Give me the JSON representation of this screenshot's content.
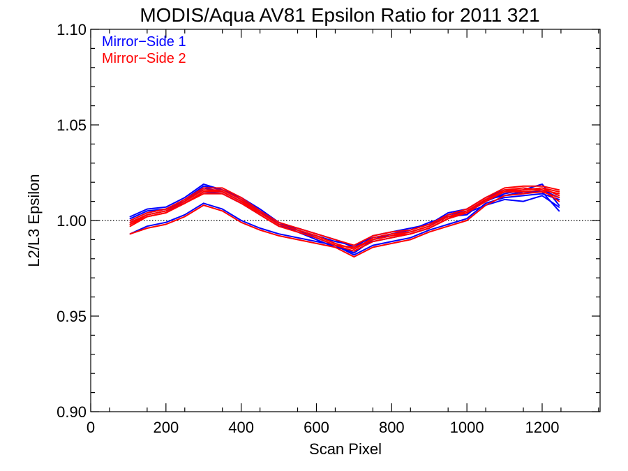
{
  "chart_data": {
    "type": "line",
    "title": "MODIS/Aqua AV81 Epsilon Ratio for 2011 321",
    "xlabel": "Scan Pixel",
    "ylabel": "L2/L3 Epsilon",
    "xlim": [
      0,
      1354
    ],
    "ylim": [
      0.9,
      1.1
    ],
    "x_ticks": [
      0,
      200,
      400,
      600,
      800,
      1000,
      1200
    ],
    "x_tick_labels": [
      "0",
      "200",
      "400",
      "600",
      "800",
      "1000",
      "1200"
    ],
    "y_ticks": [
      0.9,
      0.95,
      1.0,
      1.05,
      1.1
    ],
    "y_tick_labels": [
      "0.90",
      "0.95",
      "1.00",
      "1.05",
      "1.10"
    ],
    "reference_line": 1.0,
    "legend_position": "top-left",
    "legend": [
      {
        "label": "Mirror−Side 1",
        "color": "#0000ff"
      },
      {
        "label": "Mirror−Side 2",
        "color": "#ff0000"
      }
    ],
    "x": [
      105,
      150,
      200,
      250,
      300,
      350,
      400,
      450,
      500,
      550,
      600,
      650,
      700,
      750,
      800,
      850,
      900,
      950,
      1000,
      1050,
      1100,
      1150,
      1200,
      1245
    ],
    "series": [
      {
        "color": "#0000ff",
        "values": [
          1.002,
          1.006,
          1.007,
          1.012,
          1.019,
          1.016,
          1.012,
          1.006,
          0.999,
          0.995,
          0.991,
          0.987,
          0.983,
          0.99,
          0.993,
          0.994,
          0.997,
          1.003,
          1.005,
          1.01,
          1.014,
          1.016,
          1.019,
          1.008
        ]
      },
      {
        "color": "#0000ff",
        "values": [
          1.0,
          1.004,
          1.006,
          1.01,
          1.017,
          1.015,
          1.01,
          1.004,
          0.998,
          0.996,
          0.993,
          0.99,
          0.986,
          0.992,
          0.994,
          0.996,
          0.998,
          1.004,
          1.006,
          1.012,
          1.016,
          1.014,
          1.016,
          1.012
        ]
      },
      {
        "color": "#0000ff",
        "values": [
          0.999,
          1.003,
          1.005,
          1.009,
          1.015,
          1.014,
          1.009,
          1.003,
          0.997,
          0.995,
          0.992,
          0.989,
          0.987,
          0.991,
          0.993,
          0.995,
          0.999,
          1.002,
          1.003,
          1.011,
          1.013,
          1.015,
          1.015,
          1.005
        ]
      },
      {
        "color": "#0000ff",
        "values": [
          0.993,
          0.997,
          0.999,
          1.003,
          1.009,
          1.006,
          1.0,
          0.996,
          0.993,
          0.991,
          0.989,
          0.987,
          0.982,
          0.987,
          0.989,
          0.991,
          0.995,
          0.998,
          1.001,
          1.009,
          1.012,
          1.013,
          1.014,
          1.011
        ]
      },
      {
        "color": "#0000ff",
        "values": [
          1.001,
          1.005,
          1.006,
          1.011,
          1.018,
          1.016,
          1.011,
          1.005,
          0.998,
          0.994,
          0.99,
          0.986,
          0.984,
          0.989,
          0.991,
          0.993,
          0.996,
          1.001,
          1.004,
          1.008,
          1.011,
          1.01,
          1.013,
          1.007
        ]
      },
      {
        "color": "#ff0000",
        "values": [
          0.999,
          1.003,
          1.005,
          1.01,
          1.016,
          1.016,
          1.011,
          1.004,
          0.998,
          0.995,
          0.992,
          0.988,
          0.985,
          0.991,
          0.993,
          0.994,
          0.997,
          1.002,
          1.004,
          1.01,
          1.016,
          1.017,
          1.016,
          1.014
        ]
      },
      {
        "color": "#ff0000",
        "values": [
          0.998,
          1.002,
          1.004,
          1.009,
          1.015,
          1.015,
          1.01,
          1.003,
          0.997,
          0.994,
          0.991,
          0.987,
          0.986,
          0.99,
          0.992,
          0.993,
          0.996,
          1.001,
          1.005,
          1.011,
          1.015,
          1.016,
          1.017,
          1.013
        ]
      },
      {
        "color": "#ff0000",
        "values": [
          1.0,
          1.004,
          1.006,
          1.011,
          1.017,
          1.017,
          1.012,
          1.005,
          0.999,
          0.996,
          0.993,
          0.99,
          0.987,
          0.992,
          0.994,
          0.995,
          0.998,
          1.003,
          1.006,
          1.012,
          1.017,
          1.018,
          1.018,
          1.016
        ]
      },
      {
        "color": "#ff0000",
        "values": [
          0.993,
          0.996,
          0.998,
          1.002,
          1.008,
          1.005,
          0.999,
          0.995,
          0.992,
          0.99,
          0.988,
          0.986,
          0.981,
          0.986,
          0.988,
          0.99,
          0.994,
          0.997,
          1.0,
          1.008,
          1.013,
          1.014,
          1.015,
          1.012
        ]
      },
      {
        "color": "#ff0000",
        "values": [
          0.998,
          1.003,
          1.005,
          1.01,
          1.016,
          1.015,
          1.01,
          1.004,
          0.998,
          0.995,
          0.992,
          0.988,
          0.985,
          0.99,
          0.992,
          0.994,
          0.997,
          1.002,
          1.005,
          1.011,
          1.016,
          1.016,
          1.017,
          1.015
        ]
      },
      {
        "color": "#ff0000",
        "values": [
          0.997,
          1.002,
          1.004,
          1.009,
          1.014,
          1.014,
          1.009,
          1.003,
          0.997,
          0.994,
          0.991,
          0.987,
          0.984,
          0.989,
          0.991,
          0.993,
          0.996,
          1.001,
          1.004,
          1.01,
          1.015,
          1.015,
          1.016,
          1.01
        ]
      }
    ]
  }
}
